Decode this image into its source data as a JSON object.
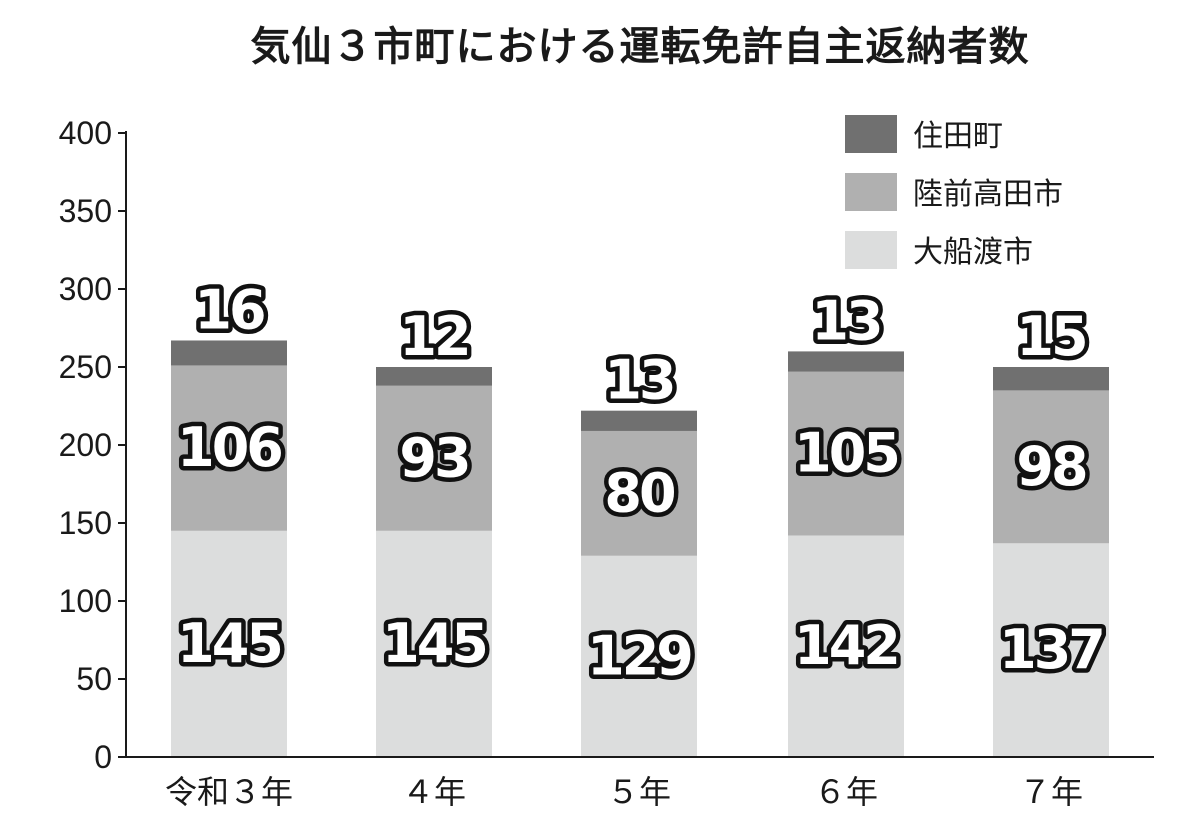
{
  "title": "気仙３市町における運転免許自主返納者数",
  "chart_data": {
    "type": "bar",
    "stacked": true,
    "categories": [
      "令和３年",
      "４年",
      "５年",
      "６年",
      "７年"
    ],
    "series": [
      {
        "name": "大船渡市",
        "values": [
          145,
          145,
          129,
          142,
          137
        ],
        "color": "#dcdddd"
      },
      {
        "name": "陸前高田市",
        "values": [
          106,
          93,
          80,
          105,
          98
        ],
        "color": "#b0b0b0"
      },
      {
        "name": "住田町",
        "values": [
          16,
          12,
          13,
          13,
          15
        ],
        "color": "#707070"
      }
    ],
    "ylim": [
      0,
      400
    ],
    "yticks": [
      0,
      50,
      100,
      150,
      200,
      250,
      300,
      350,
      400
    ],
    "legend_position": "top-right",
    "grid": false
  }
}
